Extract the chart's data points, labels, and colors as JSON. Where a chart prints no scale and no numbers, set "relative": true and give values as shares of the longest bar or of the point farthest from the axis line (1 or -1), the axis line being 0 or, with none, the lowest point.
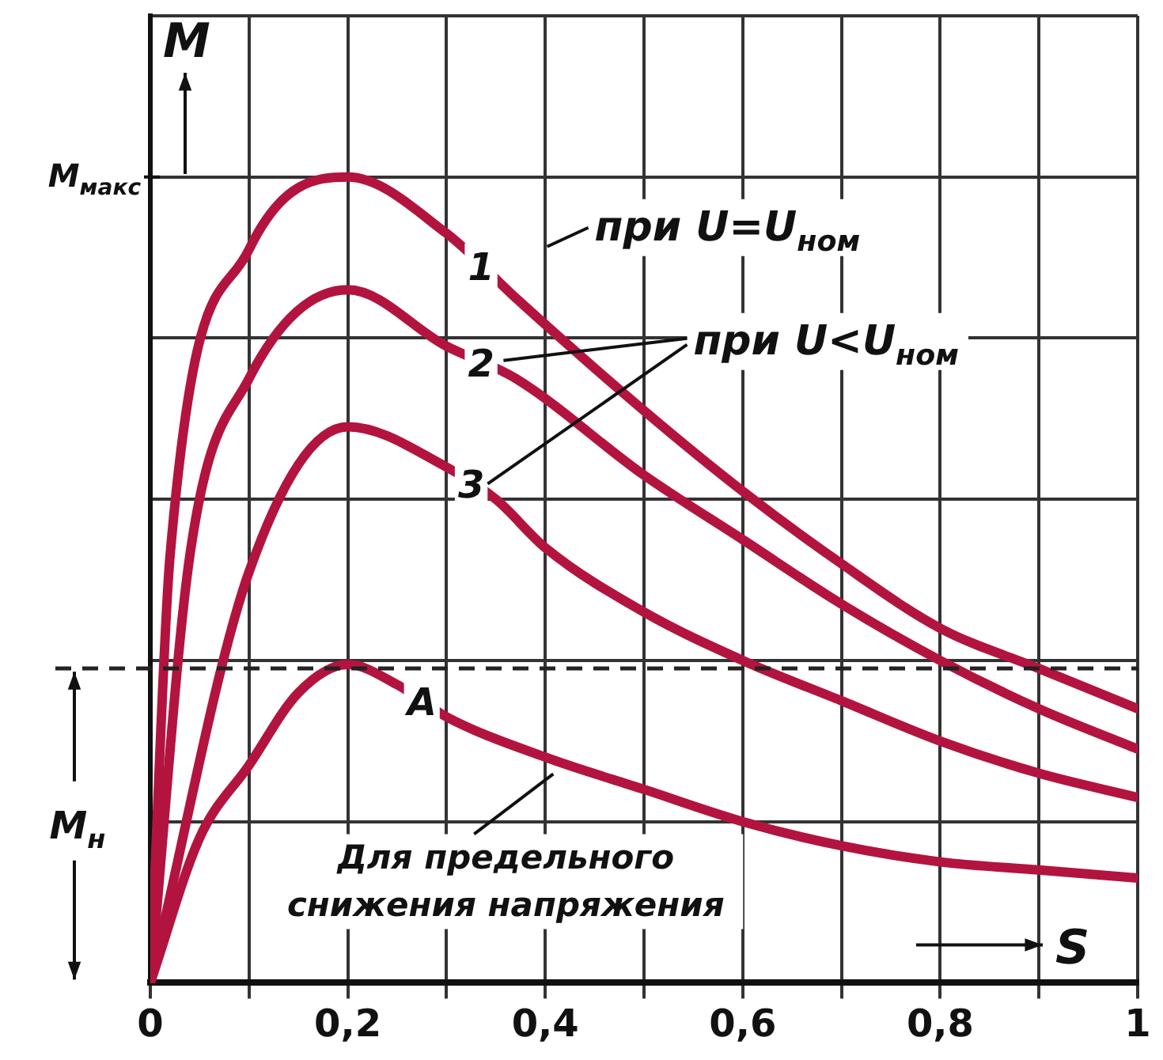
{
  "chart_data": {
    "type": "line",
    "relative": true,
    "xlabel": "S",
    "ylabel": "M",
    "grid": true,
    "legend": false,
    "marker": "none",
    "line_style": "solid",
    "xlim": [
      0,
      1
    ],
    "xticks": [
      0,
      {
        "value": 0.1,
        "label": null
      },
      {
        "value": 0.2,
        "label": "0,2"
      },
      {
        "value": 0.3,
        "label": null
      },
      {
        "value": 0.4,
        "label": "0,4"
      },
      {
        "value": 0.5,
        "label": null
      },
      {
        "value": 0.6,
        "label": "0,6"
      },
      {
        "value": 0.7,
        "label": null
      },
      {
        "value": 0.8,
        "label": "0,8"
      },
      {
        "value": 0.9,
        "label": null
      },
      1
    ],
    "series": [
      {
        "name": "1",
        "color": "#b3143f",
        "x": [
          0,
          0.02,
          0.1,
          0.2,
          0.3,
          0.37,
          0.5,
          0.6,
          0.7,
          0.8,
          0.9,
          1
        ],
        "values": [
          0,
          0.53,
          0.91,
          1,
          0.93,
          0.85,
          0.71,
          0.61,
          0.52,
          0.44,
          0.39,
          0.34
        ]
      },
      {
        "name": "2",
        "color": "#b3143f",
        "x": [
          0,
          0.04,
          0.1,
          0.2,
          0.3,
          0.37,
          0.5,
          0.6,
          0.7,
          0.8,
          0.9,
          1
        ],
        "values": [
          0,
          0.53,
          0.75,
          0.86,
          0.79,
          0.75,
          0.63,
          0.55,
          0.47,
          0.4,
          0.34,
          0.29
        ]
      },
      {
        "name": "3",
        "color": "#b3143f",
        "x": [
          0,
          0.1,
          0.2,
          0.3,
          0.35,
          0.4,
          0.5,
          0.6,
          0.7,
          0.8,
          0.9,
          1
        ],
        "values": [
          0,
          0.51,
          0.69,
          0.64,
          0.6,
          0.54,
          0.46,
          0.4,
          0.35,
          0.3,
          0.26,
          0.23
        ]
      },
      {
        "name": "A",
        "color": "#b3143f",
        "x": [
          0,
          0.05,
          0.1,
          0.15,
          0.2,
          0.25,
          0.3,
          0.4,
          0.5,
          0.6,
          0.7,
          0.8,
          0.9,
          1
        ],
        "values": [
          0,
          0.18,
          0.27,
          0.36,
          0.395,
          0.37,
          0.33,
          0.28,
          0.24,
          0.2,
          0.17,
          0.15,
          0.14,
          0.13
        ]
      }
    ],
    "ref_lines": [
      {
        "axis": "y",
        "value": 0.39,
        "label": "M$_{н}$",
        "line_style": "dashed",
        "color": "#222222"
      }
    ],
    "annotations": [
      "M$_{макс}$",
      "при U=U$_{ном}$",
      "при U<U$_{ном}$",
      "Для предельного снижения напряжения"
    ]
  }
}
